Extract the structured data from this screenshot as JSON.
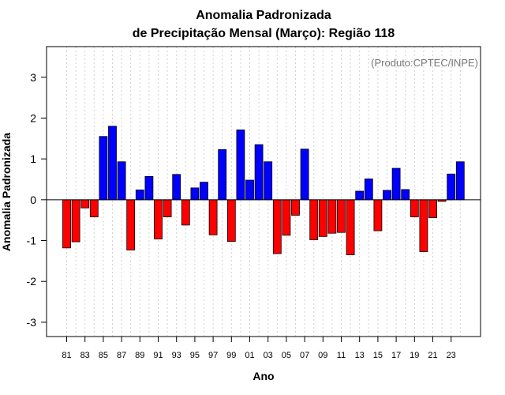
{
  "chart_data": {
    "type": "bar",
    "title": "Anomalia Padronizada",
    "subtitle": "de Precipitação Mensal (Março): Região 118",
    "xlabel": "Ano",
    "ylabel": "Anomalia Padronizada",
    "source_note": "(Produto:CPTEC/INPE)",
    "ylim": [
      -3.35,
      3.75
    ],
    "yticks": [
      -3,
      -2,
      -1,
      0,
      1,
      2,
      3
    ],
    "ytick_labels": [
      "-3",
      "-2",
      "-1",
      "0",
      "1",
      "2",
      "3"
    ],
    "x_labeled": [
      "81",
      "83",
      "85",
      "87",
      "89",
      "91",
      "93",
      "95",
      "97",
      "99",
      "01",
      "03",
      "05",
      "07",
      "09",
      "11",
      "13",
      "15",
      "17",
      "19",
      "21",
      "23"
    ],
    "categories": [
      "1981",
      "1982",
      "1983",
      "1984",
      "1985",
      "1986",
      "1987",
      "1988",
      "1989",
      "1990",
      "1991",
      "1992",
      "1993",
      "1994",
      "1995",
      "1996",
      "1997",
      "1998",
      "1999",
      "2000",
      "2001",
      "2002",
      "2003",
      "2004",
      "2005",
      "2006",
      "2007",
      "2008",
      "2009",
      "2010",
      "2011",
      "2012",
      "2013",
      "2014",
      "2015",
      "2016",
      "2017",
      "2018",
      "2019",
      "2020",
      "2021",
      "2022",
      "2023",
      "2024"
    ],
    "values": [
      -1.18,
      -1.03,
      -0.2,
      -0.42,
      1.55,
      1.8,
      0.93,
      -1.23,
      0.24,
      0.57,
      -0.96,
      -0.42,
      0.62,
      -0.62,
      0.29,
      0.43,
      -0.86,
      1.23,
      -1.02,
      1.71,
      0.48,
      1.35,
      0.93,
      -1.32,
      -0.87,
      -0.38,
      1.24,
      -0.98,
      -0.9,
      -0.82,
      -0.8,
      -1.35,
      0.21,
      0.51,
      -0.76,
      0.23,
      0.77,
      0.25,
      -0.42,
      -1.27,
      -0.44,
      -0.04,
      0.63,
      0.93
    ],
    "positive_color": "#0000ff",
    "negative_color": "#ff0000",
    "grid": true
  }
}
